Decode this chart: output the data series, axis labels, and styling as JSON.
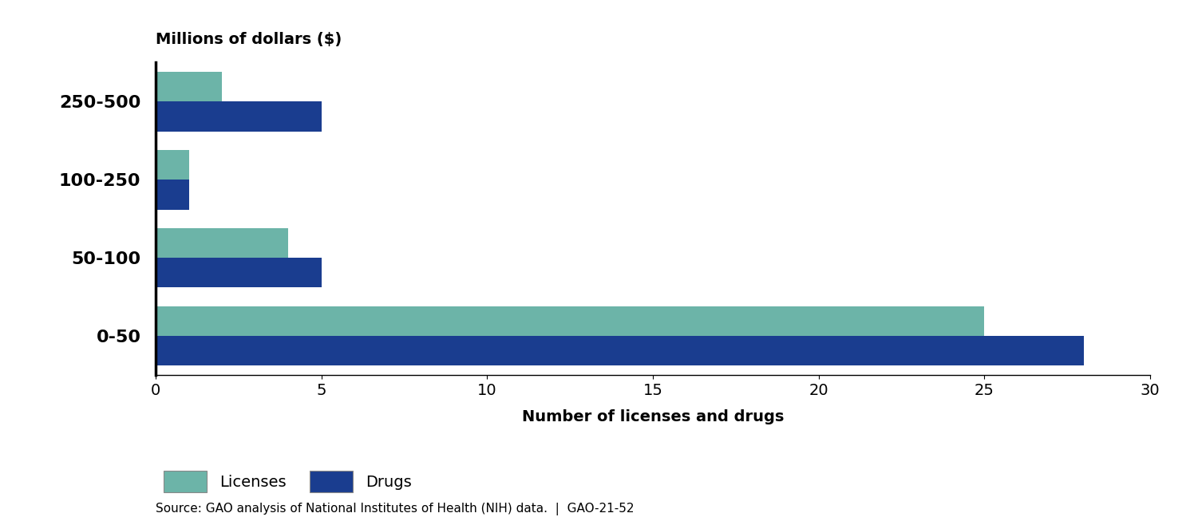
{
  "categories": [
    "250-500",
    "100-250",
    "50-100",
    "0-50"
  ],
  "licenses": [
    2,
    1,
    4,
    25
  ],
  "drugs": [
    5,
    1,
    5,
    28
  ],
  "license_color": "#6cb4a8",
  "drug_color": "#1a3d8f",
  "top_label": "Millions of dollars ($)",
  "xlabel": "Number of licenses and drugs",
  "xlim": [
    0,
    30
  ],
  "xticks": [
    0,
    5,
    10,
    15,
    20,
    25,
    30
  ],
  "legend_labels": [
    "Licenses",
    "Drugs"
  ],
  "source_text": "Source: GAO analysis of National Institutes of Health (NIH) data.  |  GAO-21-52",
  "bar_height": 0.38,
  "background_color": "#ffffff"
}
